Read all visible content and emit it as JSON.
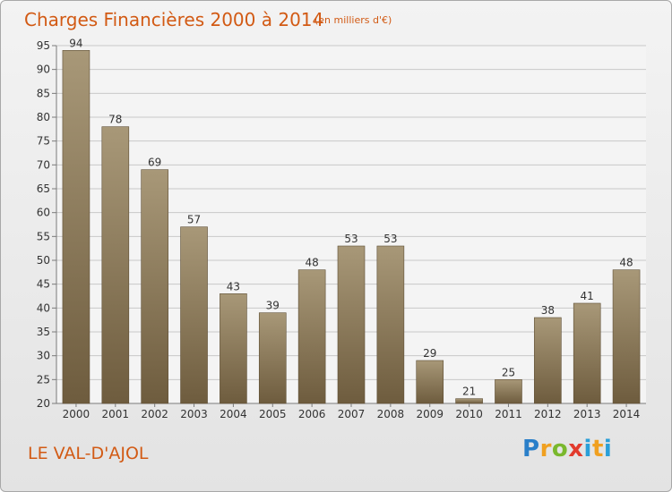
{
  "title": "Charges Financières 2000 à 2014",
  "subtitle": "(en milliers d'€)",
  "commune": "LE VAL-D'AJOL",
  "logo": {
    "text": "Proxiti",
    "parts": [
      "P",
      "r",
      "o",
      "x",
      "i",
      "t",
      "i"
    ]
  },
  "colors": {
    "title": "#d25a14",
    "bar_top": "#a89878",
    "bar_bottom": "#6e5c3e"
  },
  "chart_data": {
    "type": "bar",
    "categories": [
      "2000",
      "2001",
      "2002",
      "2003",
      "2004",
      "2005",
      "2006",
      "2007",
      "2008",
      "2009",
      "2010",
      "2011",
      "2012",
      "2013",
      "2014"
    ],
    "values": [
      94,
      78,
      69,
      57,
      43,
      39,
      48,
      53,
      53,
      29,
      21,
      25,
      38,
      41,
      48
    ],
    "ylim": [
      20,
      95
    ],
    "yticks": [
      20,
      25,
      30,
      35,
      40,
      45,
      50,
      55,
      60,
      65,
      70,
      75,
      80,
      85,
      90,
      95
    ],
    "grid": true,
    "xlabel": "",
    "ylabel": ""
  }
}
